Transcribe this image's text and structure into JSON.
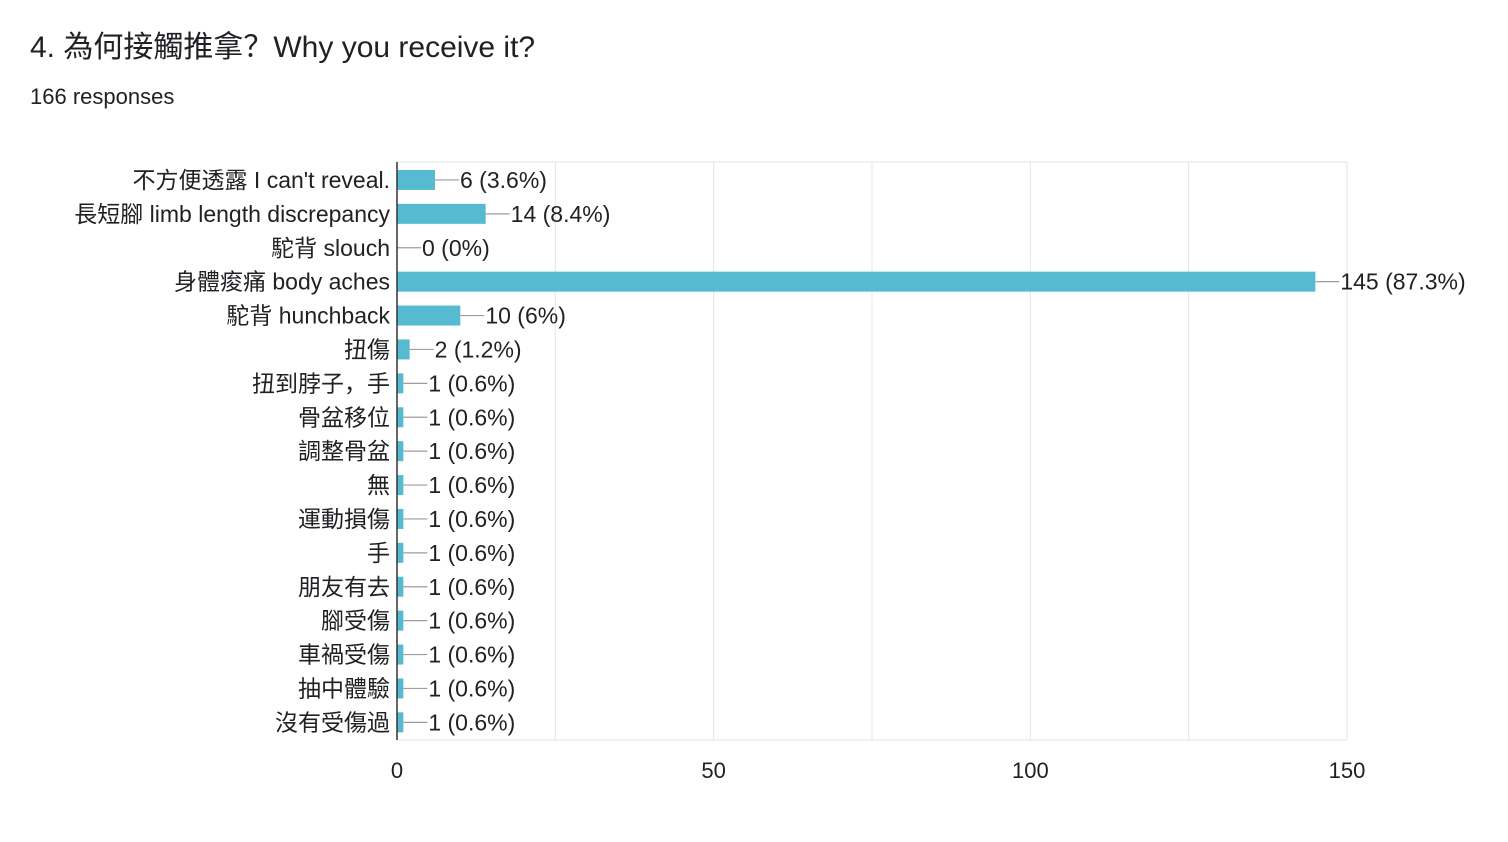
{
  "question": {
    "title": "4. 為何接觸推拿？Why you receive it?",
    "response_count": "166 responses"
  },
  "colors": {
    "bar": "#56bbd0",
    "grid": "#e5e5e5",
    "axis": "#333333",
    "leader": "#9e9e9e",
    "text": "#202124"
  },
  "chart_data": {
    "type": "bar",
    "orientation": "horizontal",
    "categories": [
      "不方便透露 I can't reveal.",
      "長短腳 limb length discrepancy",
      "駝背 slouch",
      "身體痠痛 body aches",
      "駝背 hunchback",
      "扭傷",
      "扭到脖子，手",
      "骨盆移位",
      "調整骨盆",
      "無",
      "運動損傷",
      "手",
      "朋友有去",
      "腳受傷",
      "車禍受傷",
      "抽中體驗",
      "沒有受傷過"
    ],
    "values": [
      6,
      14,
      0,
      145,
      10,
      2,
      1,
      1,
      1,
      1,
      1,
      1,
      1,
      1,
      1,
      1,
      1
    ],
    "data_labels": [
      "6 (3.6%)",
      "14 (8.4%)",
      "0 (0%)",
      "145 (87.3%)",
      "10 (6%)",
      "2 (1.2%)",
      "1 (0.6%)",
      "1 (0.6%)",
      "1 (0.6%)",
      "1 (0.6%)",
      "1 (0.6%)",
      "1 (0.6%)",
      "1 (0.6%)",
      "1 (0.6%)",
      "1 (0.6%)",
      "1 (0.6%)",
      "1 (0.6%)"
    ],
    "xlim": [
      0,
      150
    ],
    "x_ticks": [
      "0",
      "50",
      "100",
      "150"
    ],
    "x_tick_values": [
      0,
      50,
      100,
      150
    ],
    "grid": true
  }
}
